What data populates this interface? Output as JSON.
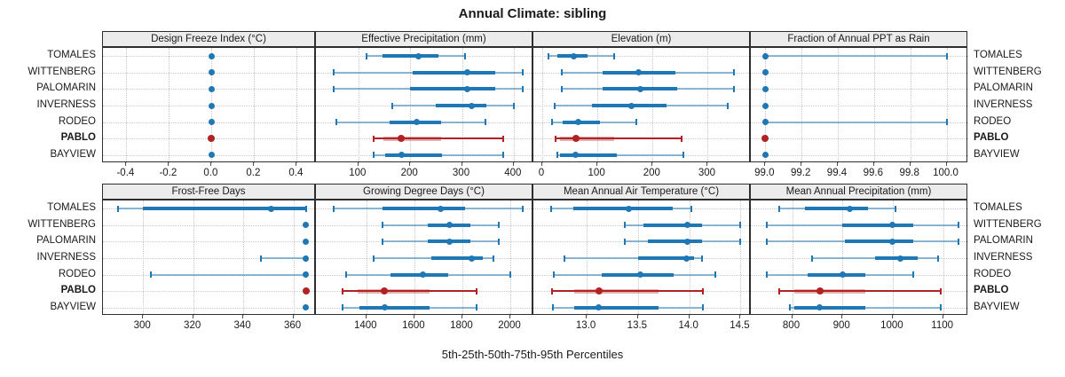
{
  "title": "Annual Climate: sibling",
  "caption": "5th-25th-50th-75th-95th Percentiles",
  "colors": {
    "series_blue": "#1f77b4",
    "series_blue_light": "rgba(31,119,180,0.5)",
    "highlight_red": "#b22222",
    "highlight_red_light": "rgba(178,34,34,0.35)",
    "strip_bg": "#ececec",
    "panel_border": "#2e2e2e",
    "grid": "#c9c9c9",
    "tick": "#4d4d4d",
    "text": "#1a1a1a"
  },
  "chart_data": {
    "type": "dotplot-trellis",
    "percentiles": [
      5,
      25,
      50,
      75,
      95
    ],
    "sites": [
      "TOMALES",
      "WITTENBERG",
      "PALOMARIN",
      "INVERNESS",
      "RODEO",
      "PABLO",
      "BAYVIEW"
    ],
    "highlight_site": "PABLO",
    "panels": [
      {
        "title": "Design Freeze Index (°C)",
        "row": 0,
        "col": 0,
        "xlim": [
          -0.51,
          0.49
        ],
        "ticks": [
          "-0.4",
          "-0.2",
          "0.0",
          "0.2",
          "0.4"
        ],
        "values": [
          [
            0,
            0,
            0,
            0,
            0
          ],
          [
            0,
            0,
            0,
            0,
            0
          ],
          [
            0,
            0,
            0,
            0,
            0
          ],
          [
            0,
            0,
            0,
            0,
            0
          ],
          [
            0,
            0,
            0,
            0,
            0
          ],
          [
            0,
            0,
            0,
            0,
            0
          ],
          [
            0,
            0,
            0,
            0,
            0
          ]
        ]
      },
      {
        "title": "Effective Precipitation (mm)",
        "row": 0,
        "col": 1,
        "xlim": [
          18,
          438
        ],
        "ticks": [
          "100",
          "200",
          "300",
          "400"
        ],
        "values": [
          [
            115,
            147,
            216,
            255,
            306
          ],
          [
            52,
            205,
            310,
            365,
            418
          ],
          [
            52,
            200,
            310,
            365,
            418
          ],
          [
            165,
            250,
            318,
            348,
            400
          ],
          [
            57,
            160,
            212,
            260,
            345
          ],
          [
            130,
            148,
            183,
            260,
            380
          ],
          [
            130,
            152,
            183,
            262,
            380
          ]
        ]
      },
      {
        "title": "Elevation (m)",
        "row": 0,
        "col": 2,
        "xlim": [
          -16,
          378
        ],
        "ticks": [
          "0",
          "100",
          "200",
          "300"
        ],
        "values": [
          [
            11,
            28,
            57,
            82,
            130
          ],
          [
            35,
            110,
            175,
            242,
            347
          ],
          [
            35,
            110,
            178,
            245,
            347
          ],
          [
            22,
            90,
            161,
            225,
            336
          ],
          [
            18,
            37,
            65,
            105,
            170
          ],
          [
            24,
            32,
            61,
            131,
            253
          ],
          [
            27,
            32,
            61,
            135,
            255
          ]
        ]
      },
      {
        "title": "Fraction of Annual PPT as Rain",
        "row": 0,
        "col": 3,
        "xlim": [
          98.92,
          100.12
        ],
        "ticks": [
          "99.0",
          "99.2",
          "99.4",
          "99.6",
          "99.8",
          "100.0"
        ],
        "values": [
          [
            99,
            99,
            99,
            99,
            100
          ],
          [
            99,
            99,
            99,
            99,
            99
          ],
          [
            99,
            99,
            99,
            99,
            99
          ],
          [
            99,
            99,
            99,
            99,
            99
          ],
          [
            99,
            99,
            99,
            99,
            100
          ],
          [
            99,
            99,
            99,
            99,
            99
          ],
          [
            99,
            99,
            99,
            99,
            99
          ]
        ]
      },
      {
        "title": "Frost-Free Days",
        "row": 1,
        "col": 0,
        "xlim": [
          284,
          369
        ],
        "ticks": [
          "300",
          "320",
          "340",
          "360"
        ],
        "values": [
          [
            290,
            300,
            351,
            365,
            365
          ],
          [
            365,
            365,
            365,
            365,
            365
          ],
          [
            365,
            365,
            365,
            365,
            365
          ],
          [
            347,
            365,
            365,
            365,
            365
          ],
          [
            303,
            365,
            365,
            365,
            365
          ],
          [
            365,
            365,
            365,
            365,
            365
          ],
          [
            365,
            365,
            365,
            365,
            365
          ]
        ]
      },
      {
        "title": "Growing Degree Days (°C)",
        "row": 1,
        "col": 1,
        "xlim": [
          1190,
          2096
        ],
        "ticks": [
          "1400",
          "1600",
          "1800",
          "2000"
        ],
        "values": [
          [
            1265,
            1467,
            1710,
            1810,
            2050
          ],
          [
            1467,
            1655,
            1748,
            1835,
            1950
          ],
          [
            1467,
            1655,
            1748,
            1835,
            1950
          ],
          [
            1430,
            1670,
            1840,
            1885,
            1930
          ],
          [
            1315,
            1500,
            1635,
            1740,
            2000
          ],
          [
            1300,
            1365,
            1475,
            1665,
            1860
          ],
          [
            1300,
            1370,
            1475,
            1665,
            1860
          ]
        ]
      },
      {
        "title": "Mean Annual Air Temperature (°C)",
        "row": 1,
        "col": 2,
        "xlim": [
          12.48,
          14.6
        ],
        "ticks": [
          "13.0",
          "13.5",
          "14.0",
          "14.5"
        ],
        "values": [
          [
            12.65,
            12.87,
            13.41,
            13.84,
            14.02
          ],
          [
            13.37,
            13.55,
            13.98,
            14.12,
            14.5
          ],
          [
            13.37,
            13.6,
            13.98,
            14.12,
            14.5
          ],
          [
            12.78,
            13.5,
            13.97,
            14.05,
            14.12
          ],
          [
            12.68,
            13.15,
            13.52,
            13.85,
            14.25
          ],
          [
            12.66,
            12.88,
            13.12,
            13.7,
            14.13
          ],
          [
            12.67,
            12.88,
            13.12,
            13.7,
            14.13
          ]
        ]
      },
      {
        "title": "Mean Annual Precipitation (mm)",
        "row": 1,
        "col": 3,
        "xlim": [
          718,
          1150
        ],
        "ticks": [
          "800",
          "900",
          "1000",
          "1100"
        ],
        "values": [
          [
            775,
            825,
            915,
            950,
            1005
          ],
          [
            750,
            900,
            1000,
            1040,
            1130
          ],
          [
            750,
            905,
            1000,
            1040,
            1130
          ],
          [
            840,
            965,
            1015,
            1050,
            1090
          ],
          [
            750,
            830,
            900,
            945,
            1040
          ],
          [
            775,
            805,
            855,
            945,
            1095
          ],
          [
            795,
            805,
            855,
            945,
            1095
          ]
        ]
      }
    ]
  }
}
